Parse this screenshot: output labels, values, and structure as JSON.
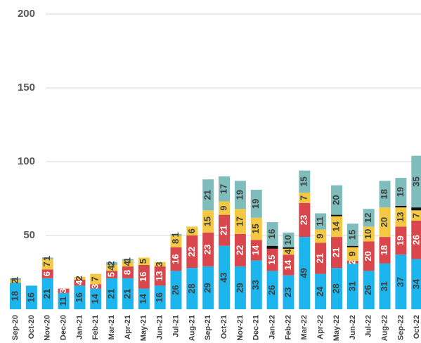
{
  "chart_data": {
    "type": "stacked_bar",
    "categories": [
      "Sep-20",
      "Oct-20",
      "Nov-20",
      "Dec-20",
      "Jan-21",
      "Feb-21",
      "Mar-21",
      "Apr-21",
      "May-21",
      "Jun-21",
      "Jul-21",
      "Aug-21",
      "Sep-21",
      "Oct-21",
      "Nov-21",
      "Dec-21",
      "Jan-22",
      "Feb-22",
      "Mar-22",
      "Apr-22",
      "May-22",
      "Jun-22",
      "Jul-22",
      "Aug-22",
      "Sep-22",
      "Oct-22"
    ],
    "series": [
      {
        "color": "#1cb5ee",
        "label_color": "#404040",
        "values": [
          18,
          16,
          21,
          11,
          16,
          14,
          21,
          21,
          14,
          16,
          26,
          28,
          29,
          43,
          29,
          33,
          26,
          23,
          49,
          24,
          28,
          31,
          26,
          31,
          37,
          34
        ]
      },
      {
        "color": "#d9474c",
        "label_color": "#ffffff",
        "values": [
          null,
          null,
          6,
          3,
          4,
          3,
          5,
          8,
          16,
          13,
          16,
          22,
          23,
          21,
          22,
          14,
          15,
          14,
          23,
          21,
          21,
          2,
          20,
          18,
          19,
          26
        ]
      },
      {
        "color": "#f5c842",
        "label_color": "#404040",
        "values": [
          2,
          null,
          7,
          null,
          2,
          7,
          4,
          4,
          5,
          3,
          8,
          6,
          15,
          9,
          17,
          15,
          null,
          4,
          7,
          9,
          14,
          9,
          10,
          20,
          13,
          7
        ]
      },
      {
        "color": "#111111",
        "label_color": "#111111",
        "values": [
          null,
          null,
          null,
          null,
          null,
          null,
          null,
          null,
          null,
          null,
          null,
          null,
          null,
          null,
          null,
          null,
          2,
          1,
          null,
          null,
          1,
          1,
          null,
          null,
          1,
          2
        ]
      },
      {
        "color": "#7fbdbd",
        "label_color": "#404040",
        "values": [
          1,
          null,
          1,
          null,
          null,
          null,
          2,
          1,
          null,
          null,
          1,
          null,
          21,
          17,
          19,
          19,
          16,
          10,
          15,
          11,
          20,
          15,
          12,
          18,
          19,
          35
        ]
      }
    ],
    "ylim": [
      0,
      200
    ],
    "yticks": [
      50,
      100,
      150,
      200
    ],
    "grid": true
  }
}
